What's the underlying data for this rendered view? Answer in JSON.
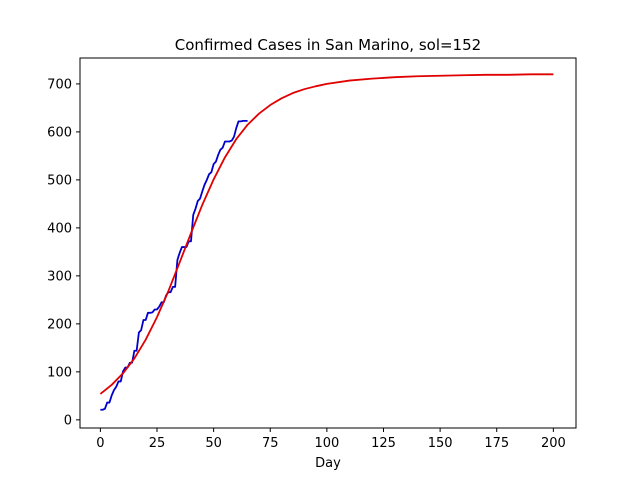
{
  "chart_data": {
    "type": "line",
    "title": "Confirmed Cases in San Marino, sol=152",
    "xlabel": "Day",
    "ylabel": "",
    "xlim": [
      -9,
      210
    ],
    "ylim": [
      -17,
      754
    ],
    "xticks": [
      0,
      25,
      50,
      75,
      100,
      125,
      150,
      175,
      200
    ],
    "yticks": [
      0,
      100,
      200,
      300,
      400,
      500,
      600,
      700
    ],
    "grid": false,
    "legend": "none",
    "series": [
      {
        "color": "#0000cc",
        "x": [
          0,
          1,
          2,
          3,
          4,
          5,
          6,
          7,
          8,
          9,
          10,
          11,
          12,
          13,
          14,
          15,
          16,
          17,
          18,
          19,
          20,
          21,
          22,
          23,
          24,
          25,
          26,
          27,
          28,
          29,
          30,
          31,
          32,
          33,
          34,
          35,
          36,
          37,
          38,
          39,
          40,
          41,
          42,
          43,
          44,
          45,
          46,
          47,
          48,
          49,
          50,
          51,
          52,
          53,
          54,
          55,
          56,
          57,
          58,
          59,
          60,
          61,
          62,
          63,
          64,
          65
        ],
        "y": [
          21,
          21,
          23,
          36,
          36,
          51,
          62,
          69,
          80,
          80,
          101,
          109,
          109,
          119,
          119,
          144,
          144,
          182,
          187,
          208,
          208,
          223,
          223,
          224,
          230,
          230,
          236,
          245,
          245,
          259,
          266,
          266,
          277,
          277,
          333,
          348,
          360,
          360,
          360,
          372,
          372,
          427,
          440,
          456,
          461,
          476,
          490,
          500,
          512,
          516,
          533,
          538,
          552,
          563,
          567,
          580,
          580,
          580,
          582,
          590,
          608,
          622,
          622,
          623,
          623,
          623
        ]
      },
      {
        "color": "#e00000",
        "x": [
          0,
          5,
          10,
          15,
          20,
          25,
          30,
          35,
          40,
          45,
          50,
          55,
          60,
          65,
          70,
          75,
          80,
          85,
          90,
          95,
          100,
          110,
          120,
          130,
          140,
          150,
          160,
          170,
          180,
          190,
          200
        ],
        "y": [
          54,
          73,
          97,
          128,
          167,
          214,
          268,
          328,
          389,
          448,
          501,
          547,
          585,
          615,
          638,
          656,
          670,
          681,
          689,
          695,
          700,
          707,
          711,
          714,
          716,
          717,
          718,
          719,
          719,
          720,
          720
        ]
      }
    ]
  }
}
